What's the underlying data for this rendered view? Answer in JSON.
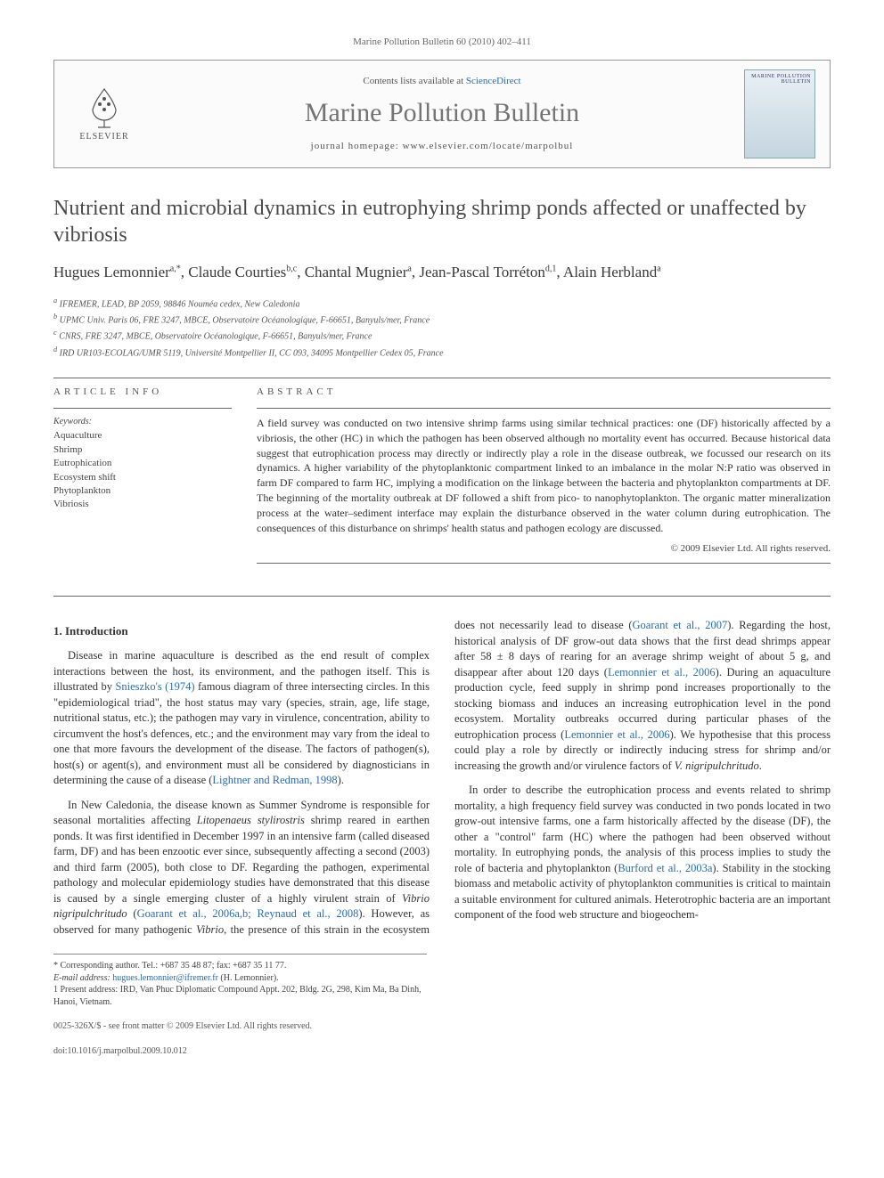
{
  "journal_ref": "Marine Pollution Bulletin 60 (2010) 402–411",
  "masthead": {
    "contents_prefix": "Contents lists available at ",
    "contents_link": "ScienceDirect",
    "journal_name": "Marine Pollution Bulletin",
    "homepage_prefix": "journal homepage: ",
    "homepage_url": "www.elsevier.com/locate/marpolbul",
    "publisher": "ELSEVIER",
    "cover_title": "MARINE POLLUTION BULLETIN"
  },
  "article": {
    "title": "Nutrient and microbial dynamics in eutrophying shrimp ponds affected or unaffected by vibriosis",
    "authors_html": "Hugues Lemonnier<sup>a,*</sup>, Claude Courties<sup>b,c</sup>, Chantal Mugnier<sup>a</sup>, Jean-Pascal Torréton<sup>d,1</sup>, Alain Herbland<sup>a</sup>",
    "affiliations": [
      "a IFREMER, LEAD, BP 2059, 98846 Nouméa cedex, New Caledonia",
      "b UPMC Univ. Paris 06, FRE 3247, MBCE, Observatoire Océanologique, F-66651, Banyuls/mer, France",
      "c CNRS, FRE 3247, MBCE, Observatoire Océanologique, F-66651, Banyuls/mer, France",
      "d IRD UR103-ECOLAG/UMR 5119, Université Montpellier II, CC 093, 34095 Montpellier Cedex 05, France"
    ]
  },
  "labels": {
    "article_info": "ARTICLE INFO",
    "abstract": "ABSTRACT",
    "keywords": "Keywords:"
  },
  "keywords": [
    "Aquaculture",
    "Shrimp",
    "Eutrophication",
    "Ecosystem shift",
    "Phytoplankton",
    "Vibriosis"
  ],
  "abstract": "A field survey was conducted on two intensive shrimp farms using similar technical practices: one (DF) historically affected by a vibriosis, the other (HC) in which the pathogen has been observed although no mortality event has occurred. Because historical data suggest that eutrophication process may directly or indirectly play a role in the disease outbreak, we focussed our research on its dynamics. A higher variability of the phytoplanktonic compartment linked to an imbalance in the molar N:P ratio was observed in farm DF compared to farm HC, implying a modification on the linkage between the bacteria and phytoplankton compartments at DF. The beginning of the mortality outbreak at DF followed a shift from pico- to nanophytoplankton. The organic matter mineralization process at the water–sediment interface may explain the disturbance observed in the water column during eutrophication. The consequences of this disturbance on shrimps' health status and pathogen ecology are discussed.",
  "copyright": "© 2009 Elsevier Ltd. All rights reserved.",
  "body": {
    "heading": "1. Introduction",
    "para1_a": "Disease in marine aquaculture is described as the end result of complex interactions between the host, its environment, and the pathogen itself. This is illustrated by ",
    "para1_cite1": "Snieszko's (1974)",
    "para1_b": " famous diagram of three intersecting circles. In this \"epidemiological triad\", the host status may vary (species, strain, age, life stage, nutritional status, etc.); the pathogen may vary in virulence, concentration, ability to circumvent the host's defences, etc.; and the environment may vary from the ideal to one that more favours the development of the disease. The factors of pathogen(s), host(s) or agent(s), and environment must all be considered by diagnosticians in determining the cause of a disease (",
    "para1_cite2": "Lightner and Redman, 1998",
    "para1_c": ").",
    "para2_a": "In New Caledonia, the disease known as Summer Syndrome is responsible for seasonal mortalities affecting ",
    "para2_ital": "Litopenaeus stylirostris",
    "para2_b": " shrimp reared in earthen ponds. It was first identified in December 1997 in an intensive farm (called diseased farm, DF) and has been enzootic ever since, subsequently affecting a second (2003) and third farm (2005), both close to DF. Regarding the pathogen, experimental pathology and molecular epidemiology studies have demonstrated that this disease is caused by a single emerging cluster of a highly virulent strain of ",
    "para2_ital2": "Vibrio nigripulchritudo",
    "para2_c": " (",
    "para2_cite1": "Goarant et al., 2006a,b; Reynaud et al., 2008",
    "para2_d": "). However, as observed for many pathogenic ",
    "para2_ital3": "Vibrio",
    "para2_e": ", the presence of this strain in the ecosystem does not necessarily lead to disease (",
    "para2_cite2": "Goarant et al., 2007",
    "para2_f": "). Regarding the host, historical analysis of DF grow-out data shows that the first dead shrimps appear after 58 ± 8 days of rearing for an average shrimp weight of about 5 g, and disappear after about 120 days (",
    "para2_cite3": "Lemonnier et al., 2006",
    "para2_g": "). During an aquaculture production cycle, feed supply in shrimp pond increases proportionally to the stocking biomass and induces an increasing eutrophication level in the pond ecosystem. Mortality outbreaks occurred during particular phases of the eutrophication process (",
    "para2_cite4": "Lemonnier et al., 2006",
    "para2_h": "). We hypothesise that this process could play a role by directly or indirectly inducing stress for shrimp and/or increasing the growth and/or virulence factors of ",
    "para2_ital4": "V. nigripulchritudo",
    "para2_i": ".",
    "para3_a": "In order to describe the eutrophication process and events related to shrimp mortality, a high frequency field survey was conducted in two ponds located in two grow-out intensive farms, one a farm historically affected by the disease (DF), the other a \"control\" farm (HC) where the pathogen had been observed without mortality. In eutrophying ponds, the analysis of this process implies to study the role of bacteria and phytoplankton (",
    "para3_cite1": "Burford et al., 2003a",
    "para3_b": "). Stability in the stocking biomass and metabolic activity of phytoplankton communities is critical to maintain a suitable environment for cultured animals. Heterotrophic bacteria are an important component of the food web structure and biogeochem-"
  },
  "footnotes": {
    "corr": "* Corresponding author. Tel.: +687 35 48 87; fax: +687 35 11 77.",
    "email_label": "E-mail address: ",
    "email": "hugues.lemonnier@ifremer.fr",
    "email_suffix": " (H. Lemonnier).",
    "present": "1 Present address: IRD, Van Phuc Diplomatic Compound Appt. 202, Bldg. 2G, 298, Kim Ma, Ba Dinh, Hanoi, Vietnam."
  },
  "footer": {
    "line1": "0025-326X/$ - see front matter © 2009 Elsevier Ltd. All rights reserved.",
    "line2": "doi:10.1016/j.marpolbul.2009.10.012"
  },
  "colors": {
    "link": "#2a6db0",
    "heading_gray": "#494949",
    "journal_gray": "#747474"
  }
}
